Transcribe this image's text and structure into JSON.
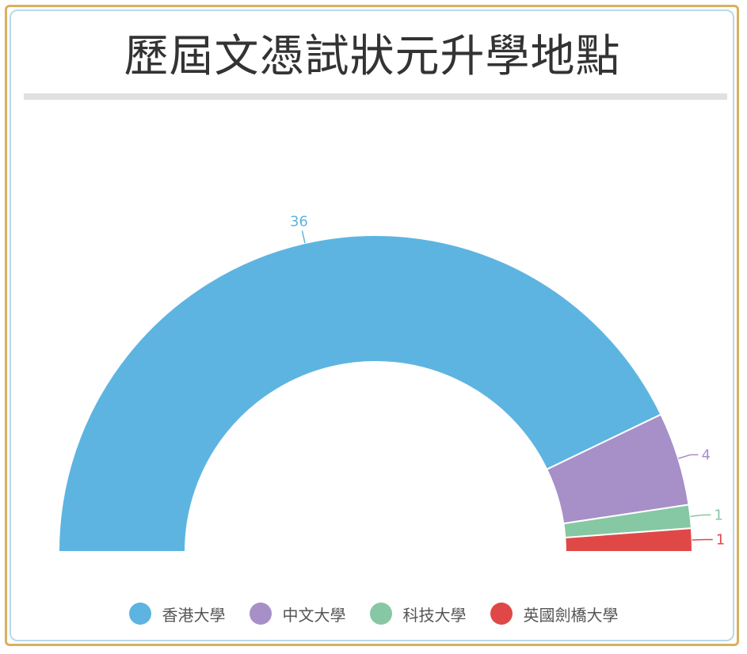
{
  "title": "歷屆文憑試狀元升學地點",
  "chart_data": {
    "type": "pie",
    "variant": "semi-donut",
    "categories": [
      "香港大學",
      "中文大學",
      "科技大學",
      "英國劍橋大學"
    ],
    "values": [
      36,
      4,
      1,
      1
    ],
    "data_labels": [
      "36",
      "4",
      "1",
      "1"
    ],
    "colors": [
      "#5db4e1",
      "#a78fc8",
      "#86c8a3",
      "#e04848"
    ],
    "legend_position": "bottom"
  }
}
